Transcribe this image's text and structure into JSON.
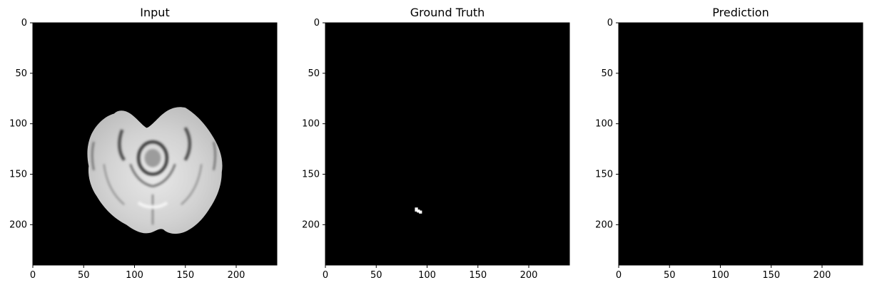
{
  "chart_data": [
    {
      "type": "heatmap",
      "title": "Input",
      "xlim": [
        0,
        240
      ],
      "ylim": [
        240,
        0
      ],
      "xticks": [
        0,
        50,
        100,
        150,
        200
      ],
      "yticks": [
        0,
        50,
        100,
        150,
        200
      ],
      "cmap": "gray",
      "content": "brain-mri-slice",
      "background": "#000000"
    },
    {
      "type": "heatmap",
      "title": "Ground Truth",
      "xlim": [
        0,
        240
      ],
      "ylim": [
        240,
        0
      ],
      "xticks": [
        0,
        50,
        100,
        150,
        200
      ],
      "yticks": [
        0,
        50,
        100,
        150,
        200
      ],
      "cmap": "gray",
      "content": "mask",
      "mask_pixels": [
        {
          "x": 88,
          "y": 183,
          "w": 3,
          "h": 4
        },
        {
          "x": 90,
          "y": 185,
          "w": 3,
          "h": 3
        },
        {
          "x": 92,
          "y": 186,
          "w": 3,
          "h": 3
        }
      ],
      "background": "#000000"
    },
    {
      "type": "heatmap",
      "title": "Prediction",
      "xlim": [
        0,
        240
      ],
      "ylim": [
        240,
        0
      ],
      "xticks": [
        0,
        50,
        100,
        150,
        200
      ],
      "yticks": [
        0,
        50,
        100,
        150,
        200
      ],
      "cmap": "gray",
      "content": "empty",
      "background": "#000000"
    }
  ]
}
